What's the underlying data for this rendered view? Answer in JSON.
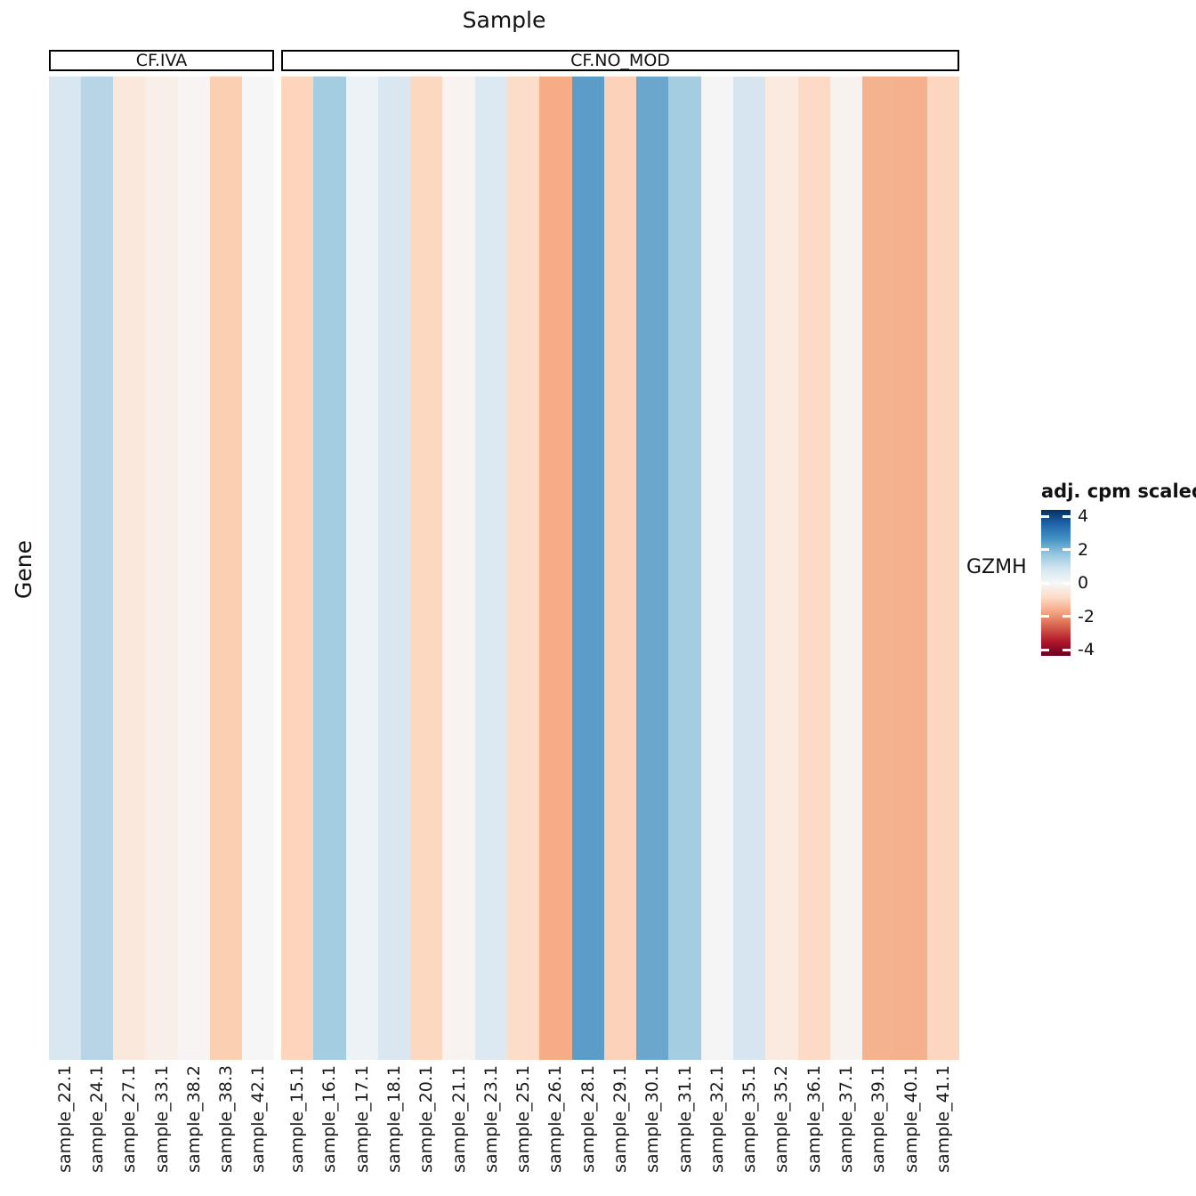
{
  "title": "Sample",
  "y_axis_label": "Gene",
  "row_label": "GZMH",
  "legend": {
    "title": "adj. cpm scaled",
    "ticks": [
      "4",
      "2",
      "0",
      "-2",
      "-4"
    ],
    "range": [
      -4.4,
      4.4
    ],
    "color_high": "#053061",
    "color_mid": "#F7F7F7",
    "color_low": "#67001F"
  },
  "chart_data": {
    "type": "heatmap",
    "title": "Sample",
    "xlabel": "Sample",
    "ylabel": "Gene",
    "rows": [
      "GZMH"
    ],
    "legend_title": "adj. cpm scaled",
    "colorbar_ticks": [
      4,
      2,
      0,
      -2,
      -4
    ],
    "colorbar_range": [
      -4.4,
      4.4
    ],
    "palette": "RdBu (blue = high, red = low)",
    "facets": [
      {
        "label": "CF.IVA",
        "samples": [
          "sample_22.1",
          "sample_24.1",
          "sample_27.1",
          "sample_33.1",
          "sample_38.2",
          "sample_38.3",
          "sample_42.1"
        ],
        "values": [
          0.8,
          1.4,
          -0.6,
          -0.3,
          -0.1,
          -1.2,
          0.0
        ],
        "colors": [
          "#d9e7f0",
          "#b7d5e6",
          "#fae8dc",
          "#f9efe9",
          "#f7f4f3",
          "#fbcfb1",
          "#f6f6f6"
        ]
      },
      {
        "label": "CF.NO_MOD",
        "samples": [
          "sample_15.1",
          "sample_16.1",
          "sample_17.1",
          "sample_18.1",
          "sample_20.1",
          "sample_21.1",
          "sample_23.1",
          "sample_25.1",
          "sample_26.1",
          "sample_28.1",
          "sample_29.1",
          "sample_30.1",
          "sample_31.1",
          "sample_32.1",
          "sample_35.1",
          "sample_35.2",
          "sample_36.1",
          "sample_37.1",
          "sample_39.1",
          "sample_40.1",
          "sample_41.1"
        ],
        "values": [
          -1.0,
          1.6,
          0.3,
          0.8,
          -1.0,
          -0.1,
          0.7,
          -0.85,
          -1.7,
          2.5,
          -1.1,
          2.3,
          1.6,
          0.0,
          0.85,
          -0.5,
          -0.95,
          -0.15,
          -1.6,
          -1.6,
          -1.05
        ],
        "colors": [
          "#fdd5bc",
          "#a5cde2",
          "#edf2f6",
          "#dae7f1",
          "#fcd8c1",
          "#f8f3f0",
          "#dde9f2",
          "#fcddc9",
          "#f6ad85",
          "#5b9cc8",
          "#fcd3ba",
          "#6ba7cc",
          "#a5cde2",
          "#f6f5f5",
          "#d7e5f0",
          "#faeadf",
          "#fcdac5",
          "#f8f2ef",
          "#f5b28e",
          "#f5b18d",
          "#fcd6be"
        ]
      }
    ]
  }
}
